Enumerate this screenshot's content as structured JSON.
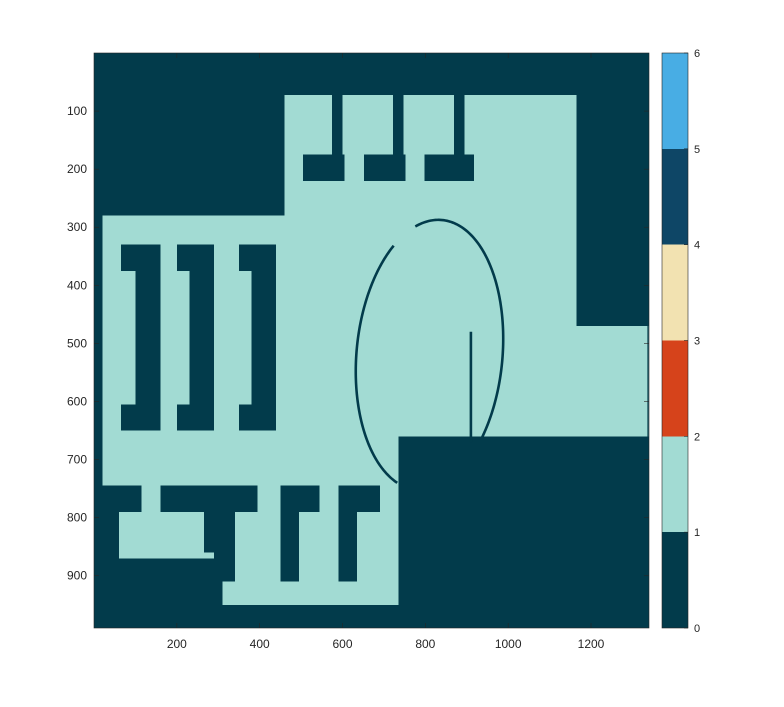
{
  "chart_data": {
    "type": "heatmap",
    "title": "",
    "xlabel": "",
    "ylabel": "",
    "x_range": [
      0,
      1340
    ],
    "y_range": [
      0,
      990
    ],
    "y_axis_direction": "reversed",
    "x_ticks": [
      200,
      400,
      600,
      800,
      1000,
      1200
    ],
    "y_ticks": [
      100,
      200,
      300,
      400,
      500,
      600,
      700,
      800,
      900
    ],
    "grid": false,
    "background_value": 0,
    "colorbar": {
      "position": "right",
      "ticks": [
        0,
        1,
        2,
        3,
        4,
        5,
        6
      ],
      "colors": [
        {
          "from": 0,
          "to": 1,
          "color": "#023B4B"
        },
        {
          "from": 1,
          "to": 2,
          "color": "#A2DBD3"
        },
        {
          "from": 2,
          "to": 3,
          "color": "#D6431B"
        },
        {
          "from": 3,
          "to": 4,
          "color": "#F2E2B1"
        },
        {
          "from": 4,
          "to": 5,
          "color": "#0E4666"
        },
        {
          "from": 5,
          "to": 6,
          "color": "#48ADE4"
        }
      ]
    },
    "regions": [
      {
        "name": "free-top",
        "value": 1,
        "x": [
          460,
          1165
        ],
        "y": [
          72,
          280
        ]
      },
      {
        "name": "free-middle",
        "value": 1,
        "x": [
          20,
          1340
        ],
        "y": [
          280,
          670
        ]
      },
      {
        "name": "free-bottom-left",
        "value": 1,
        "x": [
          20,
          735
        ],
        "y": [
          670,
          950
        ]
      },
      {
        "name": "wall-top-right",
        "value": 0,
        "x": [
          1165,
          1340
        ],
        "y": [
          72,
          470
        ]
      },
      {
        "name": "wall-bottom-right",
        "value": 0,
        "x": [
          735,
          1340
        ],
        "y": [
          660,
          990
        ]
      },
      {
        "name": "wall-bottom-left",
        "value": 0,
        "x": [
          20,
          310
        ],
        "y": [
          870,
          950
        ]
      },
      {
        "name": "comb-1-stem",
        "value": 0,
        "x": [
          575,
          600
        ],
        "y": [
          72,
          220
        ]
      },
      {
        "name": "comb-1-base",
        "value": 0,
        "x": [
          505,
          605
        ],
        "y": [
          175,
          220
        ]
      },
      {
        "name": "comb-2-stem",
        "value": 0,
        "x": [
          722,
          747
        ],
        "y": [
          72,
          220
        ]
      },
      {
        "name": "comb-2-base",
        "value": 0,
        "x": [
          652,
          752
        ],
        "y": [
          175,
          220
        ]
      },
      {
        "name": "comb-3-stem",
        "value": 0,
        "x": [
          869,
          894
        ],
        "y": [
          72,
          220
        ]
      },
      {
        "name": "comb-3-base",
        "value": 0,
        "x": [
          798,
          918
        ],
        "y": [
          175,
          220
        ]
      },
      {
        "name": "bracket-1-top",
        "value": 0,
        "x": [
          65,
          160
        ],
        "y": [
          330,
          375
        ]
      },
      {
        "name": "bracket-1-stem",
        "value": 0,
        "x": [
          100,
          160
        ],
        "y": [
          330,
          650
        ]
      },
      {
        "name": "bracket-1-bottom",
        "value": 0,
        "x": [
          65,
          160
        ],
        "y": [
          605,
          650
        ]
      },
      {
        "name": "bracket-2-top",
        "value": 0,
        "x": [
          200,
          290
        ],
        "y": [
          330,
          375
        ]
      },
      {
        "name": "bracket-2-stem",
        "value": 0,
        "x": [
          230,
          290
        ],
        "y": [
          330,
          650
        ]
      },
      {
        "name": "bracket-2-bottom",
        "value": 0,
        "x": [
          200,
          290
        ],
        "y": [
          605,
          650
        ]
      },
      {
        "name": "bracket-3-top",
        "value": 0,
        "x": [
          350,
          440
        ],
        "y": [
          330,
          375
        ]
      },
      {
        "name": "bracket-3-stem",
        "value": 0,
        "x": [
          380,
          440
        ],
        "y": [
          330,
          650
        ]
      },
      {
        "name": "bracket-3-bottom",
        "value": 0,
        "x": [
          350,
          440
        ],
        "y": [
          605,
          650
        ]
      },
      {
        "name": "bl-left-bar",
        "value": 0,
        "x": [
          20,
          115
        ],
        "y": [
          745,
          790
        ]
      },
      {
        "name": "bl-left-stem",
        "value": 0,
        "x": [
          20,
          60
        ],
        "y": [
          745,
          870
        ]
      },
      {
        "name": "bl-top-bar",
        "value": 0,
        "x": [
          160,
          395
        ],
        "y": [
          745,
          790
        ]
      },
      {
        "name": "bl-stem",
        "value": 0,
        "x": [
          290,
          340
        ],
        "y": [
          745,
          910
        ]
      },
      {
        "name": "bl-notch",
        "value": 0,
        "x": [
          265,
          300
        ],
        "y": [
          790,
          860
        ]
      },
      {
        "name": "bl-gamma-1-top",
        "value": 0,
        "x": [
          450,
          545
        ],
        "y": [
          745,
          790
        ]
      },
      {
        "name": "bl-gamma-1-stem",
        "value": 0,
        "x": [
          450,
          495
        ],
        "y": [
          745,
          910
        ]
      },
      {
        "name": "bl-gamma-2-top",
        "value": 0,
        "x": [
          590,
          690
        ],
        "y": [
          745,
          790
        ]
      },
      {
        "name": "bl-gamma-2-stem",
        "value": 0,
        "x": [
          590,
          635
        ],
        "y": [
          745,
          910
        ]
      }
    ],
    "ellipse_wall": {
      "value": 0,
      "center": [
        810,
        520
      ],
      "radius_x": 175,
      "radius_y": 235,
      "rotation_deg": 12,
      "gap_start_deg": 225,
      "gap_end_deg": 243,
      "open_end_deg": 40
    },
    "vertical_wall": {
      "value": 0,
      "x": 910,
      "y": [
        480,
        670
      ]
    },
    "right_edge_line": {
      "value": 0,
      "x": 1340,
      "y": [
        470,
        670
      ]
    }
  }
}
